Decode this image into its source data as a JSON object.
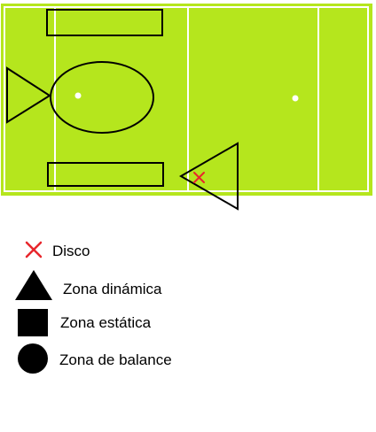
{
  "colors": {
    "field": "#b5e61d",
    "line": "#ffffff",
    "shape": "#000000",
    "disc": "#e8262c"
  },
  "legend": {
    "disc": {
      "label": "Disco",
      "icon": "x-mark-icon"
    },
    "dynamic": {
      "label": "Zona dinámica",
      "icon": "triangle-icon"
    },
    "static": {
      "label": "Zona estática",
      "icon": "square-icon"
    },
    "balance": {
      "label": "Zona de balance",
      "icon": "circle-icon"
    }
  }
}
